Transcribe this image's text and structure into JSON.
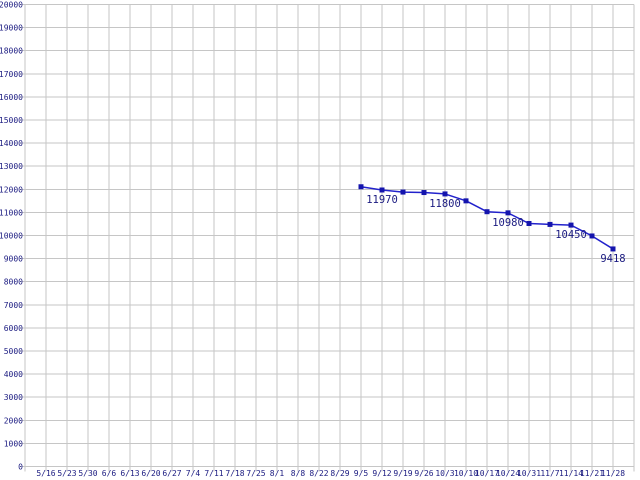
{
  "chart_data": {
    "type": "line",
    "title": "",
    "xlabel": "",
    "ylabel": "",
    "grid": true,
    "legend": "none",
    "x_labels": [
      "5/16",
      "5/23",
      "5/30",
      "6/6",
      "6/13",
      "6/20",
      "6/27",
      "7/4",
      "7/11",
      "7/18",
      "7/25",
      "8/1",
      "8/8",
      "8/22",
      "8/29",
      "9/5",
      "9/12",
      "9/19",
      "9/26",
      "10/3",
      "10/10",
      "10/17",
      "10/24",
      "10/31",
      "11/7",
      "11/14",
      "11/21",
      "11/28"
    ],
    "y_axis": {
      "min": 0,
      "max": 20000,
      "step": 1000,
      "tick_labels": [
        "0",
        "1000",
        "2000",
        "3000",
        "4000",
        "5000",
        "6000",
        "7000",
        "8000",
        "9000",
        "10000",
        "11000",
        "12000",
        "13000",
        "14000",
        "15000",
        "16000",
        "17000",
        "18000",
        "19000",
        "20000"
      ]
    },
    "series": [
      {
        "points": [
          {
            "x": "9/5",
            "y": 12110,
            "label": ""
          },
          {
            "x": "9/12",
            "y": 11970,
            "label": "11970"
          },
          {
            "x": "9/19",
            "y": 11880,
            "label": ""
          },
          {
            "x": "9/26",
            "y": 11860,
            "label": ""
          },
          {
            "x": "10/3",
            "y": 11800,
            "label": "11800"
          },
          {
            "x": "10/10",
            "y": 11500,
            "label": ""
          },
          {
            "x": "10/17",
            "y": 11030,
            "label": ""
          },
          {
            "x": "10/24",
            "y": 10980,
            "label": "10980"
          },
          {
            "x": "10/31",
            "y": 10520,
            "label": ""
          },
          {
            "x": "11/7",
            "y": 10480,
            "label": ""
          },
          {
            "x": "11/14",
            "y": 10450,
            "label": "10450"
          },
          {
            "x": "11/21",
            "y": 9980,
            "label": ""
          },
          {
            "x": "11/28",
            "y": 9418,
            "label": "9418"
          }
        ]
      }
    ],
    "colors": {
      "background": "#ffffff",
      "grid": "#c6c6c6",
      "axis_text": "#1a1a80",
      "line": "#2222cc",
      "marker": "#1414ad",
      "point_label_text": "#1a1a80"
    }
  }
}
